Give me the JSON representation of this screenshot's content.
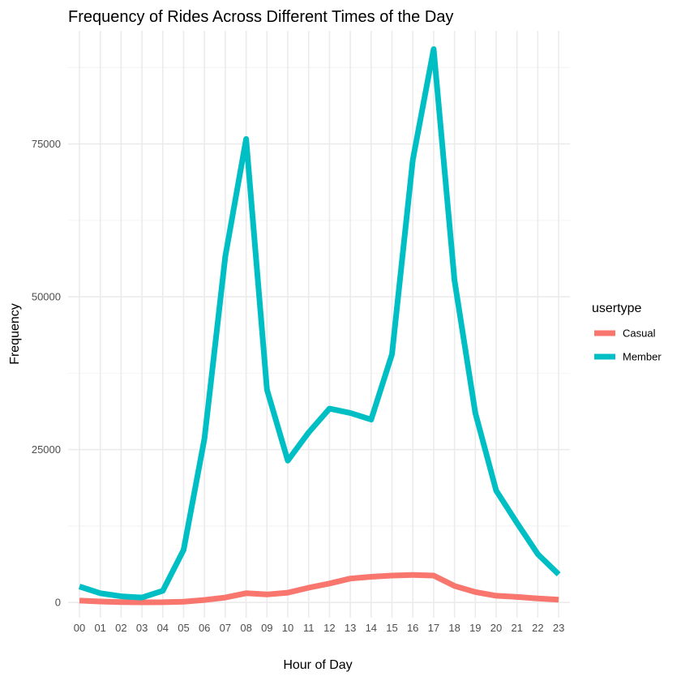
{
  "chart_data": {
    "type": "line",
    "title": "Frequency of Rides Across Different Times of the Day",
    "xlabel": "Hour of Day",
    "ylabel": "Frequency",
    "categories": [
      "00",
      "01",
      "02",
      "03",
      "04",
      "05",
      "06",
      "07",
      "08",
      "09",
      "10",
      "11",
      "12",
      "13",
      "14",
      "15",
      "16",
      "17",
      "18",
      "19",
      "20",
      "21",
      "22",
      "23"
    ],
    "ylim": [
      -2500,
      93500
    ],
    "yticks": [
      0,
      25000,
      50000,
      75000
    ],
    "ytick_labels": [
      "0",
      "25000",
      "50000",
      "75000"
    ],
    "grid": true,
    "legend": {
      "title": "usertype",
      "placement": "right"
    },
    "series": [
      {
        "name": "Casual",
        "color": "#F8766D",
        "values": [
          300,
          150,
          60,
          20,
          30,
          120,
          400,
          800,
          1500,
          1300,
          1600,
          2400,
          3100,
          3900,
          4200,
          4400,
          4500,
          4400,
          2700,
          1700,
          1100,
          900,
          650,
          450
        ]
      },
      {
        "name": "Member",
        "color": "#00BFC4",
        "values": [
          2600,
          1500,
          1000,
          800,
          1900,
          8600,
          26800,
          56600,
          75800,
          34800,
          23200,
          27800,
          31700,
          31000,
          29900,
          40600,
          72400,
          90500,
          52700,
          31000,
          18300,
          13000,
          7900,
          4600
        ]
      }
    ]
  }
}
